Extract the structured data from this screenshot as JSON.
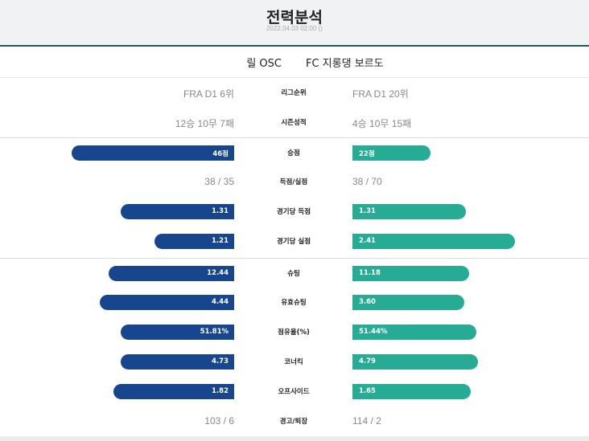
{
  "header": {
    "title": "전력분석",
    "subtitle": "2022.04.03 02:00 ()"
  },
  "teams": {
    "home": "릴 OSC",
    "away": "FC 지롱댕 보르도"
  },
  "colors": {
    "home_bar": "#17468f",
    "away_bar": "#26ab95",
    "header_rule": "#1e5a5f"
  },
  "rows": [
    {
      "label": "리그순위",
      "type": "text",
      "home": "FRA D1 6위",
      "away": "FRA D1 20위"
    },
    {
      "label": "시즌성적",
      "type": "text",
      "home": "12승 10무 7패",
      "away": "4승 10무 15패"
    },
    {
      "label": "승점",
      "type": "bar",
      "home": "46점",
      "away": "22점",
      "home_value": 46,
      "away_value": 22,
      "home_fill": 0.92,
      "away_fill": 0.44
    },
    {
      "label": "득점/실점",
      "type": "text",
      "home": "38 / 35",
      "away": "38 / 70"
    },
    {
      "label": "경기당 득점",
      "type": "bar",
      "home": "1.31",
      "away": "1.31",
      "home_value": 1.31,
      "away_value": 1.31,
      "home_fill": 0.64,
      "away_fill": 0.64
    },
    {
      "label": "경기당 실점",
      "type": "bar",
      "home": "1.21",
      "away": "2.41",
      "home_value": 1.21,
      "away_value": 2.41,
      "home_fill": 0.45,
      "away_fill": 0.92
    },
    {
      "label": "슈팅",
      "type": "bar",
      "home": "12.44",
      "away": "11.18",
      "home_value": 12.44,
      "away_value": 11.18,
      "home_fill": 0.71,
      "away_fill": 0.66
    },
    {
      "label": "유효슈팅",
      "type": "bar",
      "home": "4.44",
      "away": "3.60",
      "home_value": 4.44,
      "away_value": 3.6,
      "home_fill": 0.76,
      "away_fill": 0.63
    },
    {
      "label": "점유율(%)",
      "type": "bar",
      "home": "51.81%",
      "away": "51.44%",
      "home_value": 51.81,
      "away_value": 51.44,
      "home_fill": 0.64,
      "away_fill": 0.7
    },
    {
      "label": "코너킥",
      "type": "bar",
      "home": "4.73",
      "away": "4.79",
      "home_value": 4.73,
      "away_value": 4.79,
      "home_fill": 0.64,
      "away_fill": 0.71
    },
    {
      "label": "오프사이드",
      "type": "bar",
      "home": "1.82",
      "away": "1.65",
      "home_value": 1.82,
      "away_value": 1.65,
      "home_fill": 0.68,
      "away_fill": 0.67
    },
    {
      "label": "경고/퇴장",
      "type": "text",
      "home": "103 / 6",
      "away": "114 / 2"
    }
  ]
}
